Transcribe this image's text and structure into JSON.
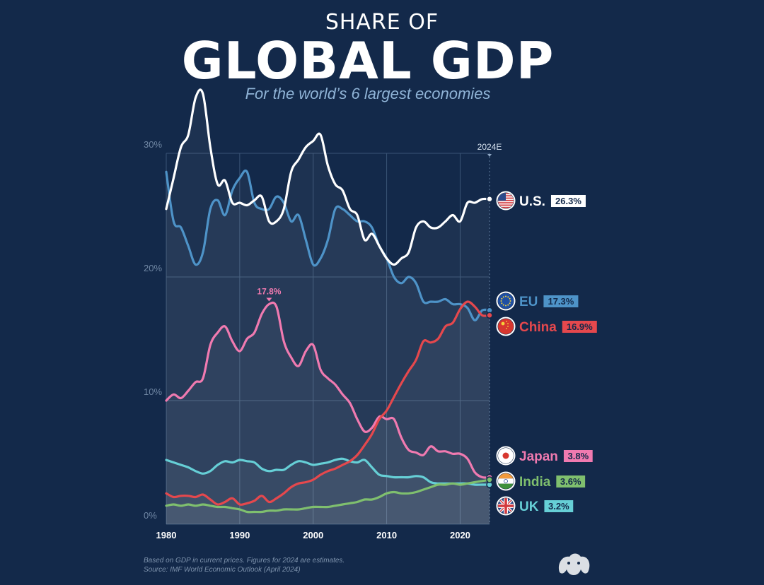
{
  "header": {
    "kicker": "SHARE OF",
    "title": "GLOBAL GDP",
    "subtitle": "For the world’s 6 largest economies"
  },
  "footer": {
    "note_line1": "Based on GDP in current prices. Figures for 2024 are estimates.",
    "note_line2": "Source: IMF World Economic Outlook (April 2024)"
  },
  "logo_icon": "elephant-logo-icon",
  "chart_data": {
    "type": "line",
    "title": "GLOBAL GDP",
    "subtitle": "For the world’s 6 largest economies",
    "xlabel": "",
    "ylabel": "",
    "xlim": [
      1980,
      2024
    ],
    "ylim": [
      0,
      30
    ],
    "grid": true,
    "y_ticks": [
      0,
      10,
      20,
      30
    ],
    "y_tick_labels": [
      "0%",
      "10%",
      "20%",
      "30%"
    ],
    "x_ticks": [
      1980,
      1990,
      2000,
      2010,
      2020
    ],
    "x_tick_labels": [
      "1980",
      "1990",
      "2000",
      "2010",
      "2020"
    ],
    "end_marker_label": "2024E",
    "x": [
      1980,
      1981,
      1982,
      1983,
      1984,
      1985,
      1986,
      1987,
      1988,
      1989,
      1990,
      1991,
      1992,
      1993,
      1994,
      1995,
      1996,
      1997,
      1998,
      1999,
      2000,
      2001,
      2002,
      2003,
      2004,
      2005,
      2006,
      2007,
      2008,
      2009,
      2010,
      2011,
      2012,
      2013,
      2014,
      2015,
      2016,
      2017,
      2018,
      2019,
      2020,
      2021,
      2022,
      2023,
      2024
    ],
    "annotation": {
      "series": "Japan",
      "x": 1994,
      "label": "17.8%"
    },
    "series": [
      {
        "name": "U.S.",
        "end_label": "26.3%",
        "color": "#ffffff",
        "flag_icon": "us-flag-icon",
        "values": [
          25.5,
          28.0,
          30.5,
          31.5,
          34.5,
          34.8,
          30.5,
          27.5,
          27.8,
          26.0,
          26.0,
          25.8,
          26.2,
          26.5,
          24.5,
          24.5,
          25.5,
          28.5,
          29.5,
          30.5,
          31.0,
          31.5,
          29.0,
          27.5,
          27.0,
          25.5,
          25.0,
          23.0,
          23.5,
          22.5,
          21.5,
          21.0,
          21.5,
          22.0,
          24.0,
          24.5,
          24.0,
          24.0,
          24.5,
          25.0,
          24.5,
          26.0,
          26.0,
          26.3,
          26.3
        ]
      },
      {
        "name": "EU",
        "end_label": "17.3%",
        "color": "#4e93c8",
        "flag_icon": "eu-flag-icon",
        "values": [
          28.5,
          24.5,
          24.0,
          22.5,
          21.0,
          22.0,
          25.5,
          26.2,
          25.0,
          27.0,
          28.0,
          28.5,
          26.0,
          25.5,
          25.5,
          26.5,
          26.0,
          24.5,
          25.0,
          23.0,
          21.0,
          21.5,
          23.0,
          25.5,
          25.5,
          25.0,
          24.5,
          24.5,
          24.0,
          22.5,
          21.5,
          20.0,
          19.5,
          20.0,
          19.5,
          18.0,
          18.0,
          18.0,
          18.2,
          17.8,
          17.8,
          17.5,
          16.5,
          17.3,
          17.3
        ]
      },
      {
        "name": "China",
        "end_label": "16.9%",
        "color": "#e5484d",
        "flag_icon": "china-flag-icon",
        "values": [
          2.5,
          2.2,
          2.3,
          2.3,
          2.2,
          2.4,
          2.0,
          1.6,
          1.8,
          2.1,
          1.6,
          1.7,
          1.9,
          2.3,
          1.8,
          2.1,
          2.5,
          3.0,
          3.3,
          3.4,
          3.6,
          4.0,
          4.3,
          4.5,
          4.8,
          5.1,
          5.6,
          6.4,
          7.3,
          8.5,
          9.2,
          10.3,
          11.4,
          12.4,
          13.3,
          14.8,
          14.7,
          15.0,
          16.0,
          16.3,
          17.4,
          18.0,
          17.6,
          16.9,
          16.9
        ]
      },
      {
        "name": "Japan",
        "end_label": "3.8%",
        "color": "#f07ab0",
        "flag_icon": "japan-flag-icon",
        "values": [
          10.0,
          10.5,
          10.2,
          10.8,
          11.5,
          11.8,
          14.5,
          15.5,
          16.0,
          14.8,
          14.0,
          15.0,
          15.5,
          17.0,
          17.8,
          17.6,
          14.8,
          13.5,
          12.8,
          14.0,
          14.5,
          12.5,
          11.8,
          11.3,
          10.5,
          9.8,
          8.5,
          7.5,
          7.8,
          8.7,
          8.5,
          8.5,
          7.0,
          6.0,
          5.8,
          5.6,
          6.3,
          5.9,
          5.9,
          5.7,
          5.7,
          5.3,
          4.2,
          3.8,
          3.8
        ]
      },
      {
        "name": "India",
        "end_label": "3.6%",
        "color": "#7fbf6e",
        "flag_icon": "india-flag-icon",
        "values": [
          1.5,
          1.6,
          1.5,
          1.6,
          1.5,
          1.6,
          1.5,
          1.4,
          1.4,
          1.3,
          1.2,
          1.0,
          1.0,
          1.0,
          1.1,
          1.1,
          1.2,
          1.2,
          1.2,
          1.3,
          1.4,
          1.4,
          1.4,
          1.5,
          1.6,
          1.7,
          1.8,
          2.0,
          2.0,
          2.2,
          2.5,
          2.6,
          2.5,
          2.5,
          2.6,
          2.8,
          3.0,
          3.2,
          3.2,
          3.3,
          3.2,
          3.3,
          3.4,
          3.5,
          3.6
        ]
      },
      {
        "name": "UK",
        "end_label": "3.2%",
        "color": "#66cfd6",
        "flag_icon": "uk-flag-icon",
        "values": [
          5.2,
          5.0,
          4.8,
          4.6,
          4.3,
          4.1,
          4.3,
          4.8,
          5.1,
          5.0,
          5.2,
          5.1,
          5.0,
          4.5,
          4.3,
          4.4,
          4.4,
          4.8,
          5.1,
          5.0,
          4.8,
          4.9,
          5.0,
          5.2,
          5.3,
          5.1,
          5.0,
          5.2,
          4.6,
          4.0,
          3.9,
          3.8,
          3.8,
          3.8,
          3.9,
          3.8,
          3.4,
          3.3,
          3.3,
          3.3,
          3.3,
          3.3,
          3.2,
          3.2,
          3.2
        ]
      }
    ]
  }
}
